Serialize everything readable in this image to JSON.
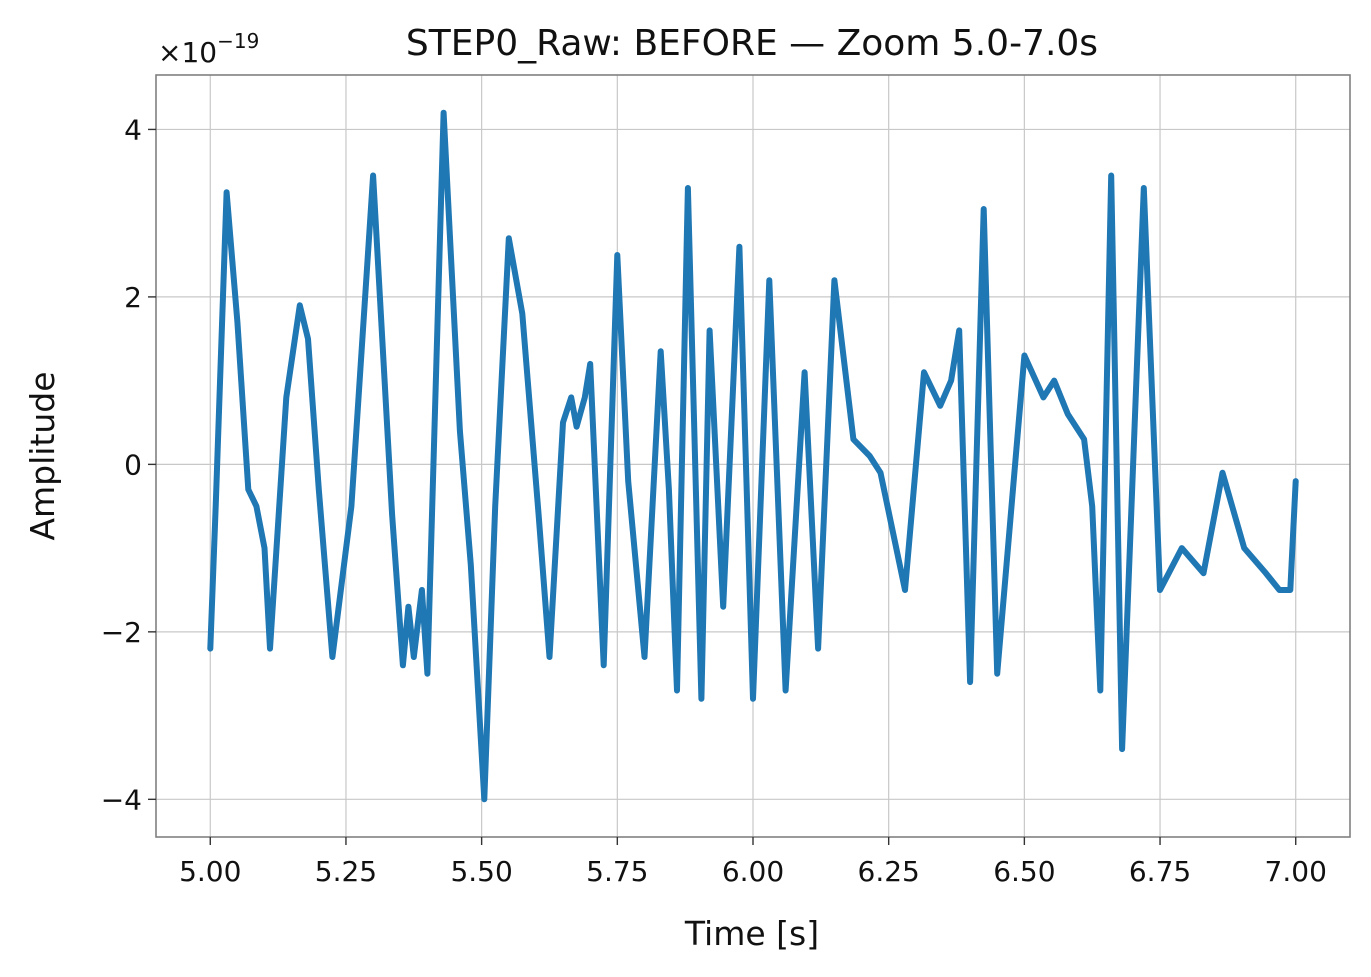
{
  "chart_data": {
    "type": "line",
    "title": "STEP0_Raw: BEFORE — Zoom 5.0-7.0s",
    "xlabel": "Time [s]",
    "ylabel": "Amplitude",
    "y_offset_label": "×10",
    "y_offset_exponent": "−19",
    "xlim": [
      4.9,
      7.1
    ],
    "ylim": [
      -4.45,
      4.65
    ],
    "grid": true,
    "line_color": "#1f77b4",
    "x_ticks": [
      5.0,
      5.25,
      5.5,
      5.75,
      6.0,
      6.25,
      6.5,
      6.75,
      7.0
    ],
    "x_tick_labels": [
      "5.00",
      "5.25",
      "5.50",
      "5.75",
      "6.00",
      "6.25",
      "6.50",
      "6.75",
      "7.00"
    ],
    "y_ticks": [
      -4,
      -2,
      0,
      2,
      4
    ],
    "y_tick_labels": [
      "−4",
      "−2",
      "0",
      "2",
      "4"
    ],
    "series": [
      {
        "name": "STEP0_Raw",
        "x": [
          5.0,
          5.01,
          5.03,
          5.05,
          5.07,
          5.085,
          5.1,
          5.11,
          5.14,
          5.165,
          5.18,
          5.2,
          5.225,
          5.26,
          5.3,
          5.335,
          5.355,
          5.365,
          5.375,
          5.39,
          5.4,
          5.43,
          5.46,
          5.48,
          5.505,
          5.525,
          5.55,
          5.575,
          5.605,
          5.625,
          5.65,
          5.665,
          5.675,
          5.69,
          5.7,
          5.725,
          5.75,
          5.77,
          5.8,
          5.83,
          5.845,
          5.86,
          5.88,
          5.905,
          5.92,
          5.945,
          5.975,
          6.0,
          6.03,
          6.06,
          6.095,
          6.12,
          6.15,
          6.185,
          6.215,
          6.235,
          6.28,
          6.315,
          6.345,
          6.365,
          6.38,
          6.4,
          6.425,
          6.45,
          6.5,
          6.535,
          6.555,
          6.58,
          6.61,
          6.625,
          6.64,
          6.66,
          6.68,
          6.72,
          6.75,
          6.79,
          6.83,
          6.865,
          6.905,
          6.945,
          6.97,
          6.99,
          7.0
        ],
        "y": [
          -2.2,
          -0.5,
          3.25,
          1.7,
          -0.3,
          -0.5,
          -1.0,
          -2.2,
          0.8,
          1.9,
          1.5,
          -0.3,
          -2.3,
          -0.5,
          3.45,
          -0.6,
          -2.4,
          -1.7,
          -2.3,
          -1.5,
          -2.5,
          4.2,
          0.4,
          -1.2,
          -4.0,
          -0.5,
          2.7,
          1.8,
          -0.6,
          -2.3,
          0.5,
          0.8,
          0.45,
          0.8,
          1.2,
          -2.4,
          2.5,
          -0.2,
          -2.3,
          1.35,
          -0.3,
          -2.7,
          3.3,
          -2.8,
          1.6,
          -1.7,
          2.6,
          -2.8,
          2.2,
          -2.7,
          1.1,
          -2.2,
          2.2,
          0.3,
          0.1,
          -0.1,
          -1.5,
          1.1,
          0.7,
          1.0,
          1.6,
          -2.6,
          3.05,
          -2.5,
          1.3,
          0.8,
          1.0,
          0.6,
          0.3,
          -0.5,
          -2.7,
          3.45,
          -3.4,
          3.3,
          -1.5,
          -1.0,
          -1.3,
          -0.1,
          -1.0,
          -1.3,
          -1.5,
          -1.5,
          -0.2
        ]
      }
    ]
  }
}
